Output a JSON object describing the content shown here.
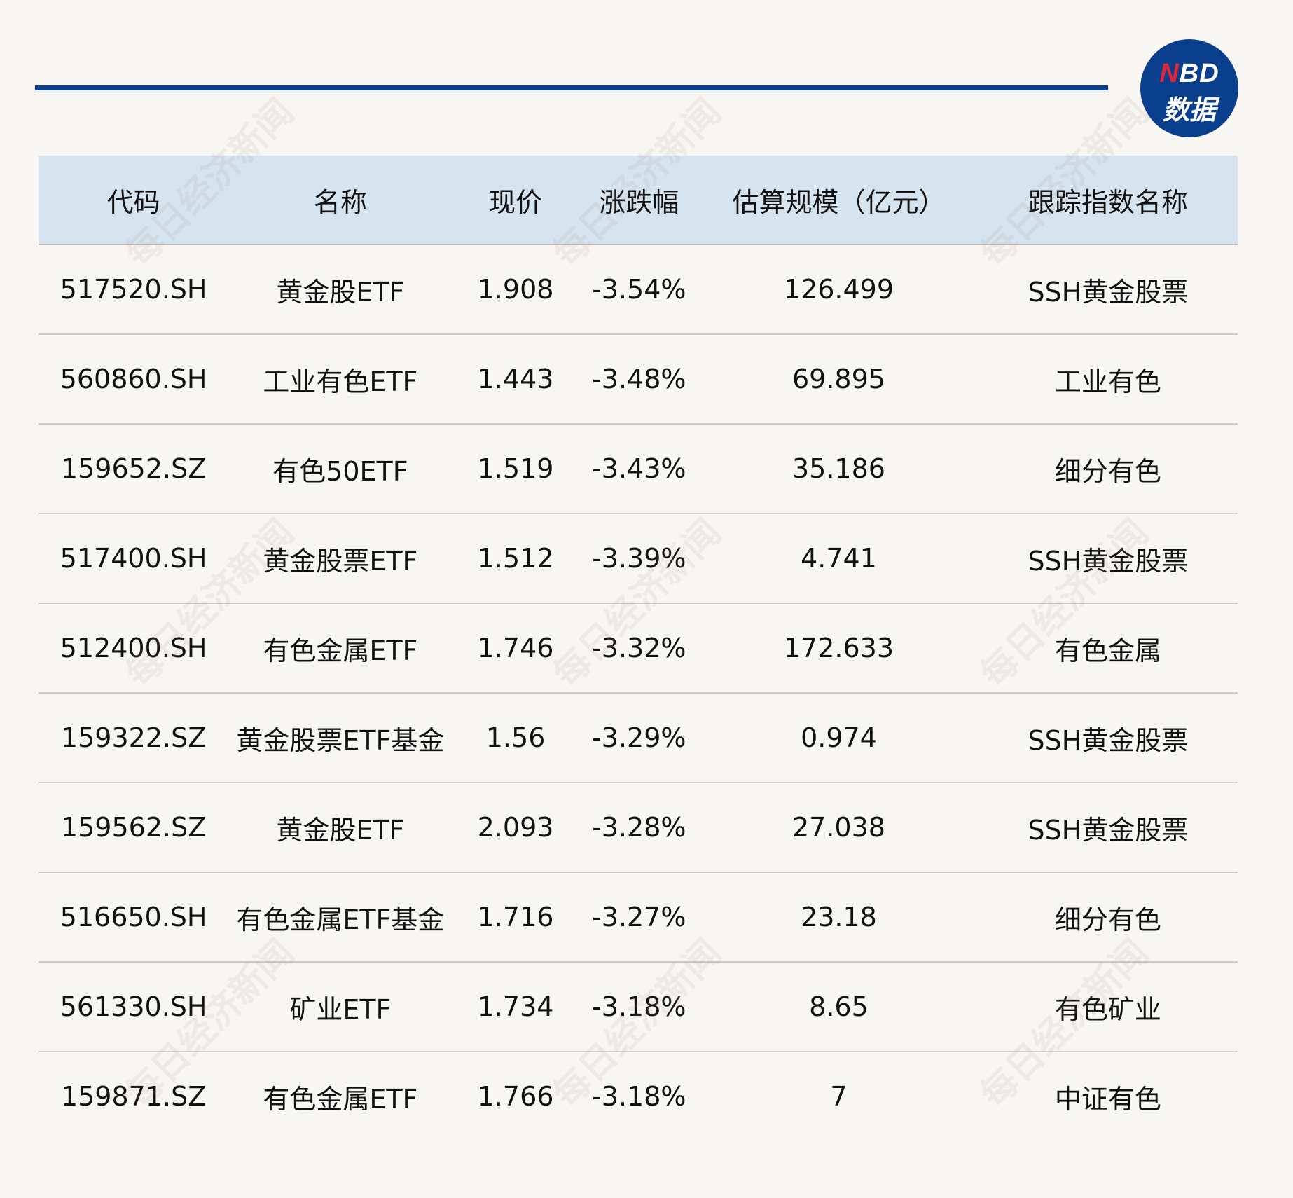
{
  "logo": {
    "line1_n": "N",
    "line1_rest": "BD",
    "line2": "数据"
  },
  "watermark": "每日经济新闻",
  "colors": {
    "accent": "#0b3f8f",
    "header_bg": "#d6e4f0",
    "logo_red": "#e0283a",
    "background": "#f8f6f2"
  },
  "table": {
    "headers": [
      "代码",
      "名称",
      "现价",
      "涨跌幅",
      "估算规模（亿元）",
      "跟踪指数名称"
    ],
    "rows": [
      [
        "517520.SH",
        "黄金股ETF",
        "1.908",
        "-3.54%",
        "126.499",
        "SSH黄金股票"
      ],
      [
        "560860.SH",
        "工业有色ETF",
        "1.443",
        "-3.48%",
        "69.895",
        "工业有色"
      ],
      [
        "159652.SZ",
        "有色50ETF",
        "1.519",
        "-3.43%",
        "35.186",
        "细分有色"
      ],
      [
        "517400.SH",
        "黄金股票ETF",
        "1.512",
        "-3.39%",
        "4.741",
        "SSH黄金股票"
      ],
      [
        "512400.SH",
        "有色金属ETF",
        "1.746",
        "-3.32%",
        "172.633",
        "有色金属"
      ],
      [
        "159322.SZ",
        "黄金股票ETF基金",
        "1.56",
        "-3.29%",
        "0.974",
        "SSH黄金股票"
      ],
      [
        "159562.SZ",
        "黄金股ETF",
        "2.093",
        "-3.28%",
        "27.038",
        "SSH黄金股票"
      ],
      [
        "516650.SH",
        "有色金属ETF基金",
        "1.716",
        "-3.27%",
        "23.18",
        "细分有色"
      ],
      [
        "561330.SH",
        "矿业ETF",
        "1.734",
        "-3.18%",
        "8.65",
        "有色矿业"
      ],
      [
        "159871.SZ",
        "有色金属ETF",
        "1.766",
        "-3.18%",
        "7",
        "中证有色"
      ]
    ]
  }
}
